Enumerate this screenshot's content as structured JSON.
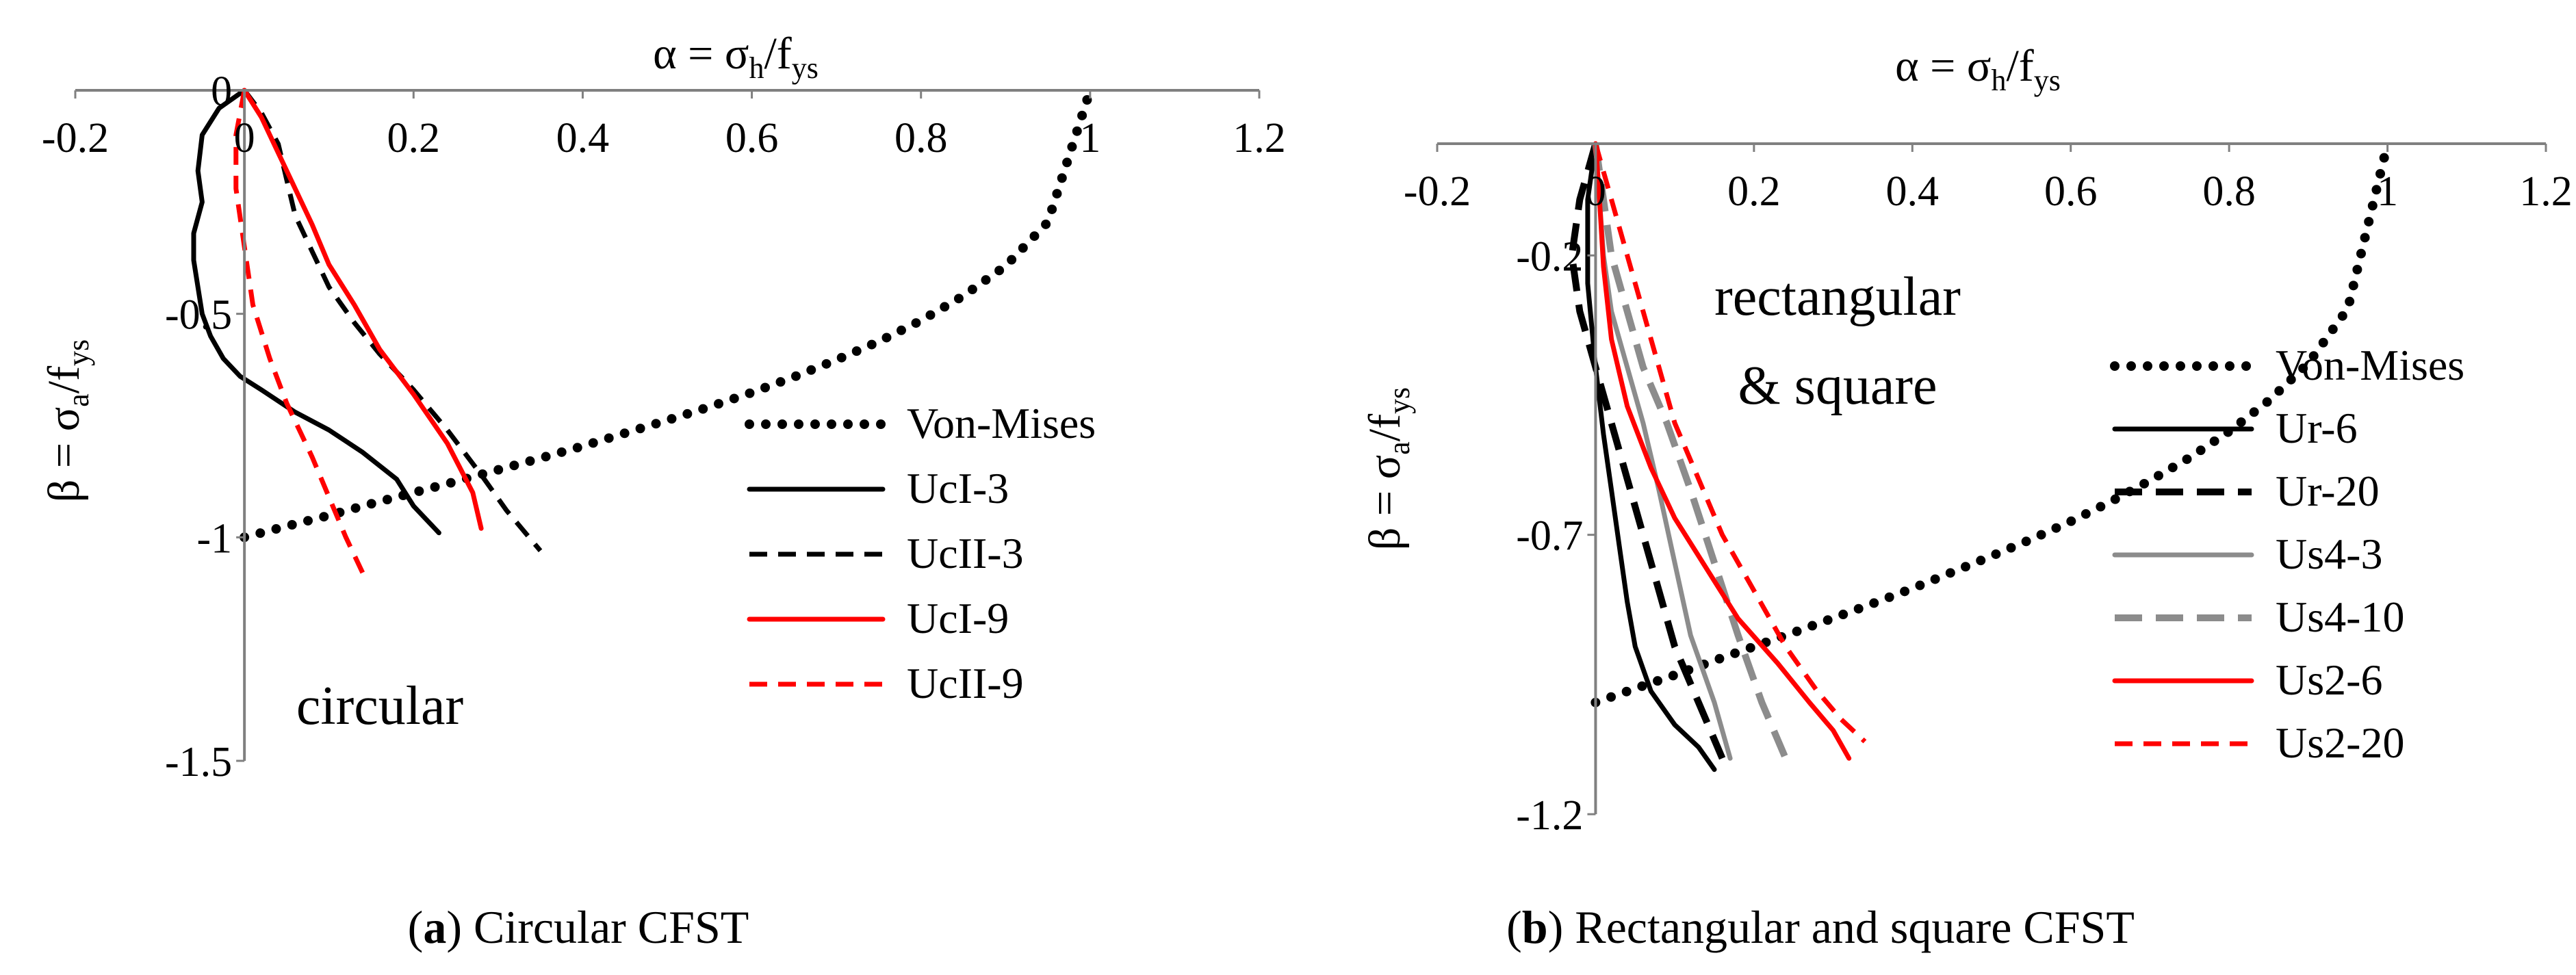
{
  "figure": {
    "colors": {
      "black": "#000000",
      "red": "#ff0000",
      "gray": "#8c8c8c",
      "axis": "#808080"
    }
  },
  "chart_data": [
    {
      "id": "a",
      "type": "line",
      "caption_letter": "a",
      "caption_rest": "Circular CFST",
      "xlabel_parts": {
        "a": "α = σ",
        "b": "h",
        "c": "/f",
        "d": "ys"
      },
      "ylabel_parts": {
        "a": "β = σ",
        "b": "a",
        "c": "/f",
        "d": "ys"
      },
      "xlim": [
        -0.2,
        1.2
      ],
      "ylim": [
        -1.5,
        0
      ],
      "x_ticks": [
        -0.2,
        0,
        0.2,
        0.4,
        0.6,
        0.8,
        1,
        1.2
      ],
      "x_tick_labels": [
        "-0.2",
        "0",
        "0.2",
        "0.4",
        "0.6",
        "0.8",
        "1",
        "1.2"
      ],
      "y_ticks": [
        0,
        -0.5,
        -1,
        -1.5
      ],
      "y_tick_labels": [
        "0",
        "-0.5",
        "-1",
        "-1.5"
      ],
      "annotation": "circular",
      "series": [
        {
          "name": "Von-Mises",
          "color": "#000000",
          "dash": "dot",
          "x": [
            0,
            0.05,
            0.1,
            0.15,
            0.2,
            0.25,
            0.3,
            0.35,
            0.4,
            0.45,
            0.5,
            0.55,
            0.6,
            0.65,
            0.7,
            0.75,
            0.8,
            0.85,
            0.9,
            0.95,
            1.0
          ],
          "y": [
            -1.0,
            -0.975,
            -0.951,
            -0.925,
            -0.9,
            -0.875,
            -0.849,
            -0.823,
            -0.796,
            -0.767,
            -0.738,
            -0.708,
            -0.676,
            -0.641,
            -0.603,
            -0.562,
            -0.515,
            -0.46,
            -0.393,
            -0.295,
            0
          ]
        },
        {
          "name": "UcI-3",
          "color": "#000000",
          "dash": "solid",
          "x": [
            0,
            -0.03,
            -0.05,
            -0.055,
            -0.05,
            -0.06,
            -0.06,
            -0.055,
            -0.05,
            -0.04,
            -0.025,
            -0.005,
            0.02,
            0.06,
            0.1,
            0.14,
            0.18,
            0.2,
            0.23
          ],
          "y": [
            0,
            -0.04,
            -0.1,
            -0.18,
            -0.25,
            -0.32,
            -0.38,
            -0.44,
            -0.5,
            -0.55,
            -0.6,
            -0.64,
            -0.67,
            -0.72,
            -0.76,
            -0.81,
            -0.87,
            -0.93,
            -0.99
          ]
        },
        {
          "name": "UcII-3",
          "color": "#000000",
          "dash": "dash",
          "x": [
            0,
            0.02,
            0.04,
            0.05,
            0.06,
            0.08,
            0.1,
            0.13,
            0.16,
            0.2,
            0.24,
            0.28,
            0.31,
            0.35
          ],
          "y": [
            0,
            -0.05,
            -0.12,
            -0.2,
            -0.28,
            -0.36,
            -0.44,
            -0.52,
            -0.59,
            -0.67,
            -0.76,
            -0.86,
            -0.94,
            -1.03
          ]
        },
        {
          "name": "UcI-9",
          "color": "#ff0000",
          "dash": "solid",
          "x": [
            0,
            0.02,
            0.04,
            0.06,
            0.08,
            0.1,
            0.13,
            0.16,
            0.2,
            0.24,
            0.27,
            0.28
          ],
          "y": [
            0,
            -0.06,
            -0.14,
            -0.22,
            -0.3,
            -0.39,
            -0.48,
            -0.58,
            -0.68,
            -0.79,
            -0.9,
            -0.98
          ]
        },
        {
          "name": "UcII-9",
          "color": "#ff0000",
          "dash": "dash",
          "x": [
            0,
            -0.01,
            -0.01,
            0,
            0.01,
            0.03,
            0.05,
            0.08,
            0.1,
            0.12,
            0.14
          ],
          "y": [
            0,
            -0.1,
            -0.22,
            -0.35,
            -0.48,
            -0.6,
            -0.7,
            -0.82,
            -0.91,
            -1.0,
            -1.08
          ]
        }
      ]
    },
    {
      "id": "b",
      "type": "line",
      "caption_letter": "b",
      "caption_rest": "Rectangular and square CFST",
      "xlabel_parts": {
        "a": "α = σ",
        "b": "h",
        "c": "/f",
        "d": "ys"
      },
      "ylabel_parts": {
        "a": "β = σ",
        "b": "a",
        "c": "/f",
        "d": "ys"
      },
      "xlim": [
        -0.2,
        1.2
      ],
      "ylim": [
        -1.2,
        0
      ],
      "x_ticks": [
        -0.2,
        0,
        0.2,
        0.4,
        0.6,
        0.8,
        1,
        1.2
      ],
      "x_tick_labels": [
        "-0.2",
        "0",
        "0.2",
        "0.4",
        "0.6",
        "0.8",
        "1",
        "1.2"
      ],
      "y_ticks": [
        -0.2,
        -0.7,
        -1.2
      ],
      "y_tick_labels": [
        "-0.2",
        "-0.7",
        "-1.2"
      ],
      "annotation_line1": "rectangular",
      "annotation_line2": "& square",
      "series": [
        {
          "name": "Von-Mises",
          "color": "#000000",
          "dash": "dot",
          "x": [
            0,
            0.05,
            0.1,
            0.15,
            0.2,
            0.25,
            0.3,
            0.35,
            0.4,
            0.45,
            0.5,
            0.55,
            0.6,
            0.65,
            0.7,
            0.75,
            0.8,
            0.85,
            0.9,
            0.95,
            1.0
          ],
          "y": [
            -1.0,
            -0.975,
            -0.951,
            -0.925,
            -0.9,
            -0.875,
            -0.849,
            -0.823,
            -0.796,
            -0.767,
            -0.738,
            -0.708,
            -0.676,
            -0.641,
            -0.603,
            -0.562,
            -0.515,
            -0.46,
            -0.393,
            -0.295,
            0
          ]
        },
        {
          "name": "Ur-6",
          "color": "#000000",
          "dash": "solid",
          "width": "thin",
          "x": [
            0,
            -0.01,
            -0.01,
            0,
            0.01,
            0.02,
            0.03,
            0.04,
            0.05,
            0.07,
            0.1,
            0.13,
            0.15
          ],
          "y": [
            0,
            -0.1,
            -0.25,
            -0.4,
            -0.52,
            -0.62,
            -0.72,
            -0.82,
            -0.9,
            -0.98,
            -1.04,
            -1.08,
            -1.12
          ]
        },
        {
          "name": "Ur-20",
          "color": "#000000",
          "dash": "dash",
          "width": "thick",
          "x": [
            0,
            -0.02,
            -0.03,
            -0.02,
            0.0,
            0.02,
            0.04,
            0.06,
            0.08,
            0.1,
            0.13,
            0.16
          ],
          "y": [
            0,
            -0.1,
            -0.2,
            -0.3,
            -0.4,
            -0.5,
            -0.6,
            -0.7,
            -0.8,
            -0.9,
            -1.0,
            -1.1
          ]
        },
        {
          "name": "Us4-3",
          "color": "#8c8c8c",
          "dash": "solid",
          "width": "thin",
          "x": [
            0,
            0.005,
            0.01,
            0.02,
            0.04,
            0.06,
            0.08,
            0.1,
            0.12,
            0.15,
            0.17
          ],
          "y": [
            0,
            -0.1,
            -0.2,
            -0.3,
            -0.4,
            -0.5,
            -0.62,
            -0.75,
            -0.88,
            -1.0,
            -1.1
          ]
        },
        {
          "name": "Us4-10",
          "color": "#8c8c8c",
          "dash": "dash",
          "width": "thick",
          "x": [
            0,
            0.01,
            0.02,
            0.04,
            0.06,
            0.09,
            0.12,
            0.15,
            0.18,
            0.21,
            0.24
          ],
          "y": [
            0,
            -0.1,
            -0.2,
            -0.3,
            -0.4,
            -0.5,
            -0.62,
            -0.75,
            -0.88,
            -1.0,
            -1.1
          ]
        },
        {
          "name": "Us2-6",
          "color": "#ff0000",
          "dash": "solid",
          "width": "thin",
          "x": [
            0,
            0.005,
            0.01,
            0.02,
            0.04,
            0.07,
            0.1,
            0.14,
            0.18,
            0.23,
            0.27,
            0.3,
            0.32
          ],
          "y": [
            0,
            -0.1,
            -0.22,
            -0.35,
            -0.47,
            -0.58,
            -0.67,
            -0.76,
            -0.85,
            -0.93,
            -1.0,
            -1.05,
            -1.1
          ]
        },
        {
          "name": "Us2-20",
          "color": "#ff0000",
          "dash": "dash",
          "width": "thin",
          "x": [
            0,
            0.02,
            0.04,
            0.06,
            0.08,
            0.1,
            0.13,
            0.16,
            0.2,
            0.24,
            0.28,
            0.31,
            0.34
          ],
          "y": [
            0,
            -0.1,
            -0.2,
            -0.3,
            -0.4,
            -0.5,
            -0.6,
            -0.7,
            -0.8,
            -0.9,
            -0.98,
            -1.03,
            -1.07
          ]
        }
      ]
    }
  ]
}
